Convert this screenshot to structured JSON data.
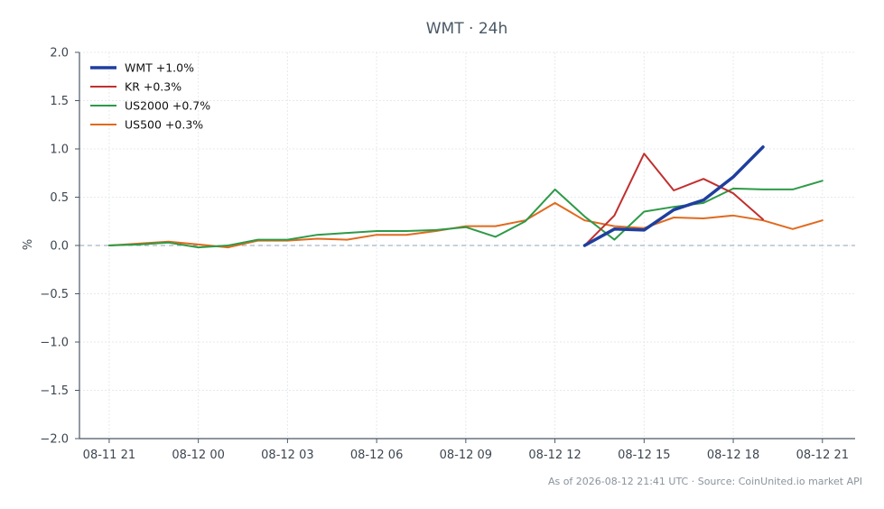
{
  "chart_data": {
    "type": "line",
    "title": "WMT · 24h",
    "xlabel": "",
    "ylabel": "%",
    "xlim": [
      -1,
      25.1
    ],
    "ylim": [
      -2.0,
      2.0
    ],
    "grid": true,
    "legend_position": "top-left",
    "reference_line": 0,
    "x_ticks": [
      {
        "x": 0,
        "label": "08-11 21"
      },
      {
        "x": 3,
        "label": "08-12 00"
      },
      {
        "x": 6,
        "label": "08-12 03"
      },
      {
        "x": 9,
        "label": "08-12 06"
      },
      {
        "x": 12,
        "label": "08-12 09"
      },
      {
        "x": 15,
        "label": "08-12 12"
      },
      {
        "x": 18,
        "label": "08-12 15"
      },
      {
        "x": 21,
        "label": "08-12 18"
      },
      {
        "x": 24,
        "label": "08-12 21"
      }
    ],
    "y_ticks": [
      {
        "y": 2.0,
        "label": "2.0"
      },
      {
        "y": 1.5,
        "label": "1.5"
      },
      {
        "y": 1.0,
        "label": "1.0"
      },
      {
        "y": 0.5,
        "label": "0.5"
      },
      {
        "y": 0.0,
        "label": "0.0"
      },
      {
        "y": -0.5,
        "label": "−0.5"
      },
      {
        "y": -1.0,
        "label": "−1.0"
      },
      {
        "y": -1.5,
        "label": "−1.5"
      },
      {
        "y": -2.0,
        "label": "−2.0"
      }
    ],
    "series": [
      {
        "name": "WMT +1.0%",
        "color": "#1f3f9e",
        "width": 3.5,
        "x": [
          16,
          17,
          18,
          19,
          20,
          21,
          22
        ],
        "y": [
          0.0,
          0.17,
          0.16,
          0.37,
          0.47,
          0.71,
          1.02
        ]
      },
      {
        "name": "KR +0.3%",
        "color": "#c0302f",
        "width": 2,
        "x": [
          16,
          17,
          18,
          19,
          20,
          21,
          22
        ],
        "y": [
          0.0,
          0.31,
          0.95,
          0.57,
          0.69,
          0.54,
          0.27
        ]
      },
      {
        "name": "US2000 +0.7%",
        "color": "#2e9a48",
        "width": 2,
        "x": [
          0,
          1,
          2,
          3,
          4,
          5,
          6,
          7,
          8,
          9,
          10,
          11,
          12,
          13,
          14,
          15,
          16,
          17,
          18,
          19,
          20,
          21,
          22,
          23,
          24
        ],
        "y": [
          0.0,
          0.01,
          0.03,
          -0.02,
          0.0,
          0.06,
          0.06,
          0.11,
          0.13,
          0.15,
          0.15,
          0.16,
          0.19,
          0.09,
          0.25,
          0.58,
          0.3,
          0.06,
          0.35,
          0.4,
          0.44,
          0.59,
          0.58,
          0.58,
          0.67
        ]
      },
      {
        "name": "US500 +0.3%",
        "color": "#e06a1f",
        "width": 2,
        "x": [
          0,
          1,
          2,
          3,
          4,
          5,
          6,
          7,
          8,
          9,
          10,
          11,
          12,
          13,
          14,
          15,
          16,
          17,
          18,
          19,
          20,
          21,
          22,
          23,
          24
        ],
        "y": [
          0.0,
          0.02,
          0.04,
          0.01,
          -0.02,
          0.05,
          0.05,
          0.07,
          0.06,
          0.11,
          0.11,
          0.15,
          0.2,
          0.2,
          0.26,
          0.44,
          0.26,
          0.2,
          0.18,
          0.29,
          0.28,
          0.31,
          0.26,
          0.17,
          0.26
        ]
      }
    ]
  },
  "footer": "As of 2026-08-12 21:41 UTC · Source: CoinUnited.io market API"
}
